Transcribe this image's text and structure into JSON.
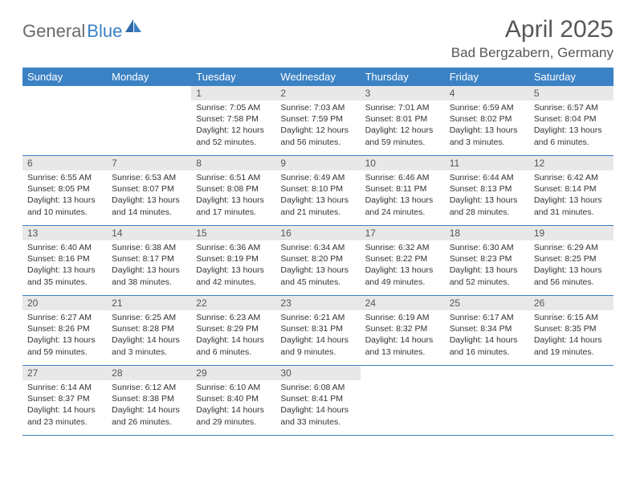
{
  "logo": {
    "part1": "General",
    "part2": "Blue"
  },
  "title": "April 2025",
  "location": "Bad Bergzabern, Germany",
  "colors": {
    "header_bg": "#3b82c4",
    "header_text": "#ffffff",
    "daynum_bg": "#e8e8e8",
    "border": "#3b82c4",
    "title_color": "#575757",
    "logo_gray": "#6a6a6a",
    "logo_blue": "#3b82c4"
  },
  "weekdays": [
    "Sunday",
    "Monday",
    "Tuesday",
    "Wednesday",
    "Thursday",
    "Friday",
    "Saturday"
  ],
  "weeks": [
    [
      null,
      null,
      {
        "n": "1",
        "sr": "Sunrise: 7:05 AM",
        "ss": "Sunset: 7:58 PM",
        "dl": "Daylight: 12 hours and 52 minutes."
      },
      {
        "n": "2",
        "sr": "Sunrise: 7:03 AM",
        "ss": "Sunset: 7:59 PM",
        "dl": "Daylight: 12 hours and 56 minutes."
      },
      {
        "n": "3",
        "sr": "Sunrise: 7:01 AM",
        "ss": "Sunset: 8:01 PM",
        "dl": "Daylight: 12 hours and 59 minutes."
      },
      {
        "n": "4",
        "sr": "Sunrise: 6:59 AM",
        "ss": "Sunset: 8:02 PM",
        "dl": "Daylight: 13 hours and 3 minutes."
      },
      {
        "n": "5",
        "sr": "Sunrise: 6:57 AM",
        "ss": "Sunset: 8:04 PM",
        "dl": "Daylight: 13 hours and 6 minutes."
      }
    ],
    [
      {
        "n": "6",
        "sr": "Sunrise: 6:55 AM",
        "ss": "Sunset: 8:05 PM",
        "dl": "Daylight: 13 hours and 10 minutes."
      },
      {
        "n": "7",
        "sr": "Sunrise: 6:53 AM",
        "ss": "Sunset: 8:07 PM",
        "dl": "Daylight: 13 hours and 14 minutes."
      },
      {
        "n": "8",
        "sr": "Sunrise: 6:51 AM",
        "ss": "Sunset: 8:08 PM",
        "dl": "Daylight: 13 hours and 17 minutes."
      },
      {
        "n": "9",
        "sr": "Sunrise: 6:49 AM",
        "ss": "Sunset: 8:10 PM",
        "dl": "Daylight: 13 hours and 21 minutes."
      },
      {
        "n": "10",
        "sr": "Sunrise: 6:46 AM",
        "ss": "Sunset: 8:11 PM",
        "dl": "Daylight: 13 hours and 24 minutes."
      },
      {
        "n": "11",
        "sr": "Sunrise: 6:44 AM",
        "ss": "Sunset: 8:13 PM",
        "dl": "Daylight: 13 hours and 28 minutes."
      },
      {
        "n": "12",
        "sr": "Sunrise: 6:42 AM",
        "ss": "Sunset: 8:14 PM",
        "dl": "Daylight: 13 hours and 31 minutes."
      }
    ],
    [
      {
        "n": "13",
        "sr": "Sunrise: 6:40 AM",
        "ss": "Sunset: 8:16 PM",
        "dl": "Daylight: 13 hours and 35 minutes."
      },
      {
        "n": "14",
        "sr": "Sunrise: 6:38 AM",
        "ss": "Sunset: 8:17 PM",
        "dl": "Daylight: 13 hours and 38 minutes."
      },
      {
        "n": "15",
        "sr": "Sunrise: 6:36 AM",
        "ss": "Sunset: 8:19 PM",
        "dl": "Daylight: 13 hours and 42 minutes."
      },
      {
        "n": "16",
        "sr": "Sunrise: 6:34 AM",
        "ss": "Sunset: 8:20 PM",
        "dl": "Daylight: 13 hours and 45 minutes."
      },
      {
        "n": "17",
        "sr": "Sunrise: 6:32 AM",
        "ss": "Sunset: 8:22 PM",
        "dl": "Daylight: 13 hours and 49 minutes."
      },
      {
        "n": "18",
        "sr": "Sunrise: 6:30 AM",
        "ss": "Sunset: 8:23 PM",
        "dl": "Daylight: 13 hours and 52 minutes."
      },
      {
        "n": "19",
        "sr": "Sunrise: 6:29 AM",
        "ss": "Sunset: 8:25 PM",
        "dl": "Daylight: 13 hours and 56 minutes."
      }
    ],
    [
      {
        "n": "20",
        "sr": "Sunrise: 6:27 AM",
        "ss": "Sunset: 8:26 PM",
        "dl": "Daylight: 13 hours and 59 minutes."
      },
      {
        "n": "21",
        "sr": "Sunrise: 6:25 AM",
        "ss": "Sunset: 8:28 PM",
        "dl": "Daylight: 14 hours and 3 minutes."
      },
      {
        "n": "22",
        "sr": "Sunrise: 6:23 AM",
        "ss": "Sunset: 8:29 PM",
        "dl": "Daylight: 14 hours and 6 minutes."
      },
      {
        "n": "23",
        "sr": "Sunrise: 6:21 AM",
        "ss": "Sunset: 8:31 PM",
        "dl": "Daylight: 14 hours and 9 minutes."
      },
      {
        "n": "24",
        "sr": "Sunrise: 6:19 AM",
        "ss": "Sunset: 8:32 PM",
        "dl": "Daylight: 14 hours and 13 minutes."
      },
      {
        "n": "25",
        "sr": "Sunrise: 6:17 AM",
        "ss": "Sunset: 8:34 PM",
        "dl": "Daylight: 14 hours and 16 minutes."
      },
      {
        "n": "26",
        "sr": "Sunrise: 6:15 AM",
        "ss": "Sunset: 8:35 PM",
        "dl": "Daylight: 14 hours and 19 minutes."
      }
    ],
    [
      {
        "n": "27",
        "sr": "Sunrise: 6:14 AM",
        "ss": "Sunset: 8:37 PM",
        "dl": "Daylight: 14 hours and 23 minutes."
      },
      {
        "n": "28",
        "sr": "Sunrise: 6:12 AM",
        "ss": "Sunset: 8:38 PM",
        "dl": "Daylight: 14 hours and 26 minutes."
      },
      {
        "n": "29",
        "sr": "Sunrise: 6:10 AM",
        "ss": "Sunset: 8:40 PM",
        "dl": "Daylight: 14 hours and 29 minutes."
      },
      {
        "n": "30",
        "sr": "Sunrise: 6:08 AM",
        "ss": "Sunset: 8:41 PM",
        "dl": "Daylight: 14 hours and 33 minutes."
      },
      null,
      null,
      null
    ]
  ]
}
